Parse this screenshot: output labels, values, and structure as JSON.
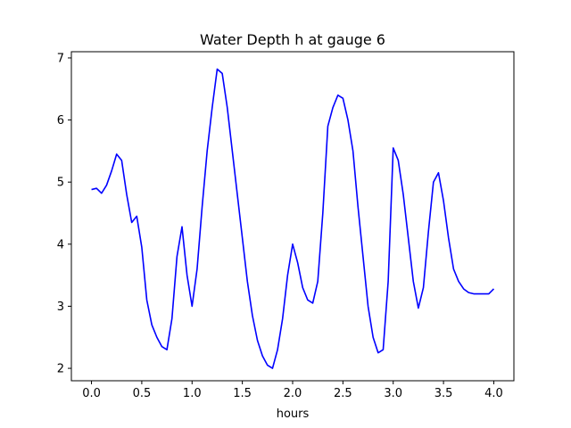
{
  "chart_data": {
    "type": "line",
    "title": "Water Depth h at gauge 6",
    "xlabel": "hours",
    "ylabel": "",
    "xlim": [
      -0.2,
      4.2
    ],
    "ylim": [
      1.8,
      7.1
    ],
    "xticks": [
      0.0,
      0.5,
      1.0,
      1.5,
      2.0,
      2.5,
      3.0,
      3.5,
      4.0
    ],
    "xtick_labels": [
      "0.0",
      "0.5",
      "1.0",
      "1.5",
      "2.0",
      "2.5",
      "3.0",
      "3.5",
      "4.0"
    ],
    "yticks": [
      2,
      3,
      4,
      5,
      6,
      7
    ],
    "ytick_labels": [
      "2",
      "3",
      "4",
      "5",
      "6",
      "7"
    ],
    "grid": false,
    "series": [
      {
        "color": "#0000ff",
        "x": [
          0.0,
          0.05,
          0.1,
          0.15,
          0.2,
          0.25,
          0.3,
          0.35,
          0.4,
          0.45,
          0.5,
          0.55,
          0.6,
          0.65,
          0.7,
          0.75,
          0.8,
          0.85,
          0.9,
          0.95,
          1.0,
          1.05,
          1.1,
          1.15,
          1.2,
          1.25,
          1.3,
          1.35,
          1.4,
          1.45,
          1.5,
          1.55,
          1.6,
          1.65,
          1.7,
          1.75,
          1.8,
          1.85,
          1.9,
          1.95,
          2.0,
          2.05,
          2.1,
          2.15,
          2.2,
          2.25,
          2.3,
          2.35,
          2.4,
          2.45,
          2.5,
          2.55,
          2.6,
          2.65,
          2.7,
          2.75,
          2.8,
          2.85,
          2.9,
          2.95,
          3.0,
          3.05,
          3.1,
          3.15,
          3.2,
          3.25,
          3.3,
          3.35,
          3.4,
          3.45,
          3.5,
          3.55,
          3.6,
          3.65,
          3.7,
          3.75,
          3.8,
          3.85,
          3.9,
          3.95,
          4.0
        ],
        "y": [
          4.88,
          4.9,
          4.82,
          4.95,
          5.18,
          5.45,
          5.35,
          4.8,
          4.35,
          4.45,
          3.95,
          3.1,
          2.7,
          2.5,
          2.35,
          2.3,
          2.8,
          3.8,
          4.28,
          3.5,
          3.0,
          3.6,
          4.6,
          5.5,
          6.2,
          6.82,
          6.75,
          6.2,
          5.5,
          4.8,
          4.1,
          3.4,
          2.85,
          2.45,
          2.2,
          2.05,
          2.0,
          2.3,
          2.8,
          3.5,
          4.0,
          3.7,
          3.3,
          3.1,
          3.05,
          3.4,
          4.5,
          5.9,
          6.2,
          6.4,
          6.35,
          6.0,
          5.5,
          4.6,
          3.8,
          3.0,
          2.5,
          2.25,
          2.3,
          3.4,
          5.55,
          5.35,
          4.8,
          4.1,
          3.4,
          2.97,
          3.3,
          4.2,
          5.0,
          5.15,
          4.7,
          4.1,
          3.6,
          3.4,
          3.28,
          3.22,
          3.2,
          3.2,
          3.2,
          3.2,
          3.28
        ]
      }
    ]
  }
}
